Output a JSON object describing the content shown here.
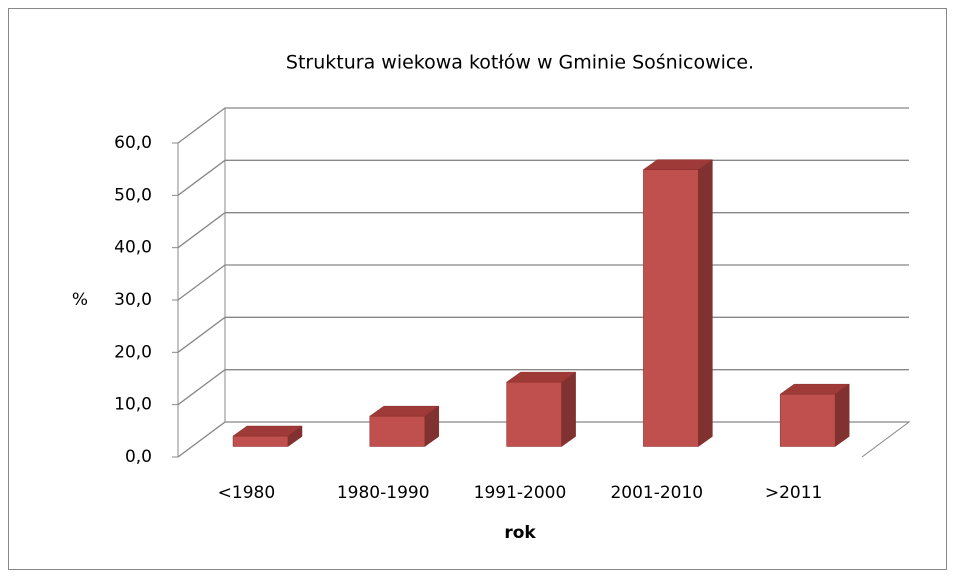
{
  "chart_data": {
    "type": "bar3d",
    "title": "Struktura wiekowa kotłów w Gminie Sośnicowice.",
    "x_label": "rok",
    "y_label": "%",
    "categories": [
      "<1980",
      "1980-1990",
      "1991-2000",
      "2001-2010",
      ">2011"
    ],
    "values": [
      2.0,
      5.8,
      12.3,
      52.9,
      10.0
    ],
    "color": "#c0504d",
    "ylim": [
      0,
      60
    ],
    "yticks": [
      {
        "value": 0,
        "label": "0,0"
      },
      {
        "value": 10,
        "label": "10,0"
      },
      {
        "value": 20,
        "label": "20,0"
      },
      {
        "value": 30,
        "label": "30,0"
      },
      {
        "value": 40,
        "label": "40,0"
      },
      {
        "value": 50,
        "label": "50,0"
      },
      {
        "value": 60,
        "label": "60,0"
      }
    ],
    "grid": true
  }
}
